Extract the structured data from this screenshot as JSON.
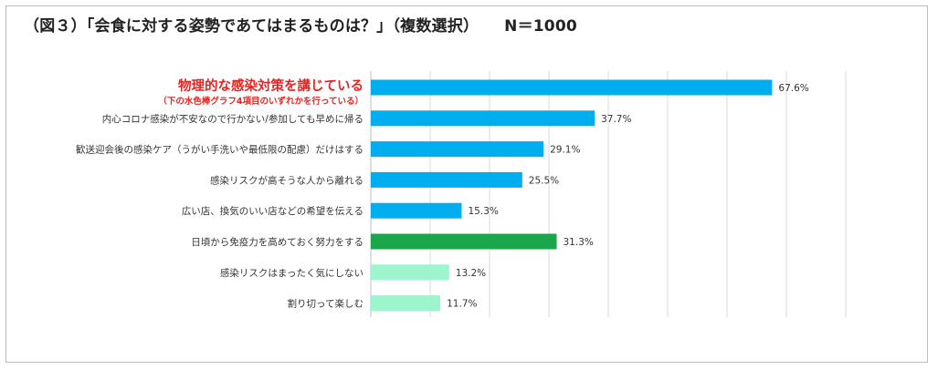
{
  "title": "（図３）「会食に対する姿勢であてはまるものは？」（複数選択）",
  "sample_size": "N＝1000",
  "colors": {
    "blue": "#00aeef",
    "green": "#1aa64a",
    "mint": "#9df5cd",
    "highlight_text": "#e52421",
    "grid": "#d9d9d9"
  },
  "chart_data": {
    "type": "bar",
    "orientation": "horizontal",
    "title": "（図３）「会食に対する姿勢であてはまるものは？」（複数選択）",
    "unit": "%",
    "xlim": [
      0,
      80
    ],
    "grid": true,
    "categories": [
      "物理的な感染対策を講じている",
      "内心コロナ感染が不安なので行かない/参加しても早めに帰る",
      "歓送迎会後の感染ケア（うがい手洗いや最低限の配慮）だけはする",
      "感染リスクが高そうな人から離れる",
      "広い店、換気のいい店などの希望を伝える",
      "日頃から免疫力を高めておく努力をする",
      "感染リスクはまったく気にしない",
      "割り切って楽しむ"
    ],
    "category_note": "（下の水色棒グラフ4項目のいずれかを行っている）",
    "values": [
      67.6,
      37.7,
      29.1,
      25.5,
      15.3,
      31.3,
      13.2,
      11.7
    ],
    "value_labels": [
      "67.6%",
      "37.7%",
      "29.1%",
      "25.5%",
      "15.3%",
      "31.3%",
      "13.2%",
      "11.7%"
    ],
    "bar_colors": [
      "blue",
      "blue",
      "blue",
      "blue",
      "blue",
      "green",
      "mint",
      "mint"
    ],
    "highlight_index": 0
  }
}
